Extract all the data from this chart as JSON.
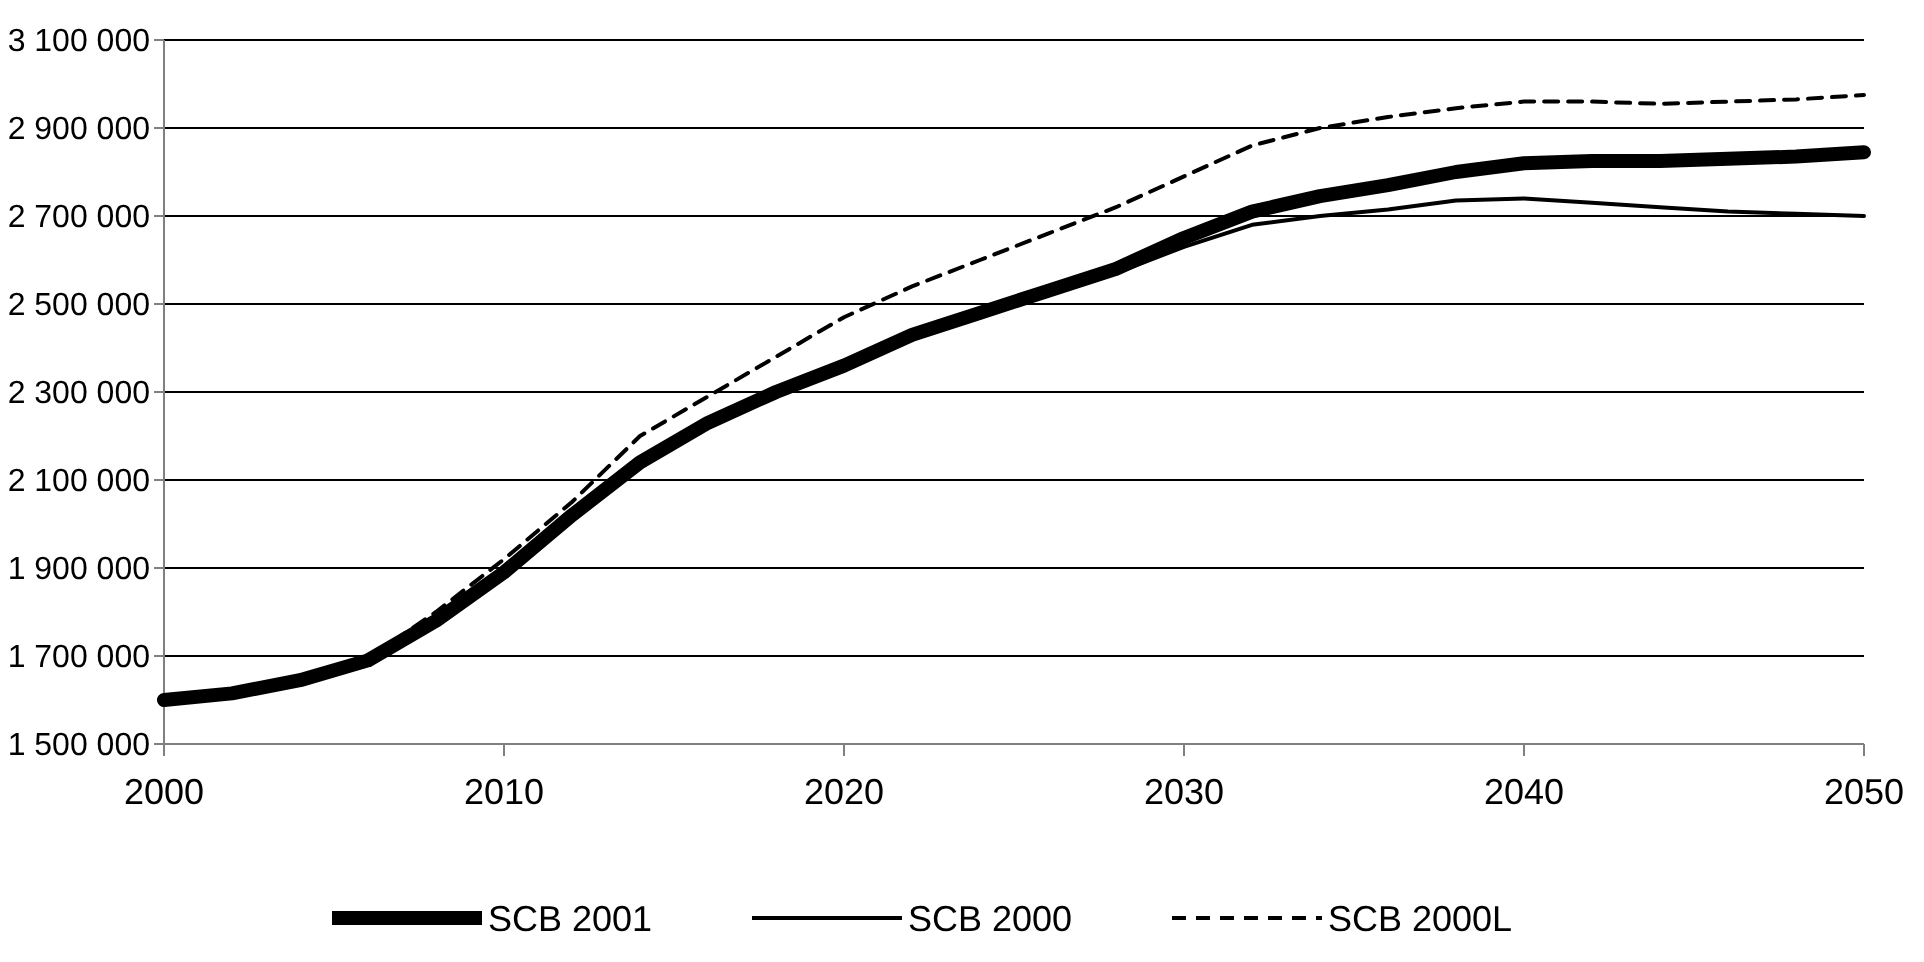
{
  "chart_data": {
    "type": "line",
    "x": [
      2000,
      2002,
      2004,
      2006,
      2008,
      2010,
      2012,
      2014,
      2016,
      2018,
      2020,
      2022,
      2024,
      2026,
      2028,
      2030,
      2032,
      2034,
      2036,
      2038,
      2040,
      2042,
      2044,
      2046,
      2048,
      2050
    ],
    "series": [
      {
        "name": "SCB 2001",
        "color": "#000000",
        "line_style": "solid",
        "values": [
          1600000,
          1615000,
          1645000,
          1690000,
          1780000,
          1890000,
          2020000,
          2140000,
          2230000,
          2300000,
          2360000,
          2430000,
          2480000,
          2530000,
          2580000,
          2650000,
          2710000,
          2745000,
          2770000,
          2800000,
          2820000,
          2825000,
          2825000,
          2830000,
          2835000,
          2845000
        ]
      },
      {
        "name": "SCB 2000",
        "color": "#000000",
        "line_style": "solid",
        "values": [
          1600000,
          1615000,
          1645000,
          1690000,
          1780000,
          1890000,
          2020000,
          2140000,
          2230000,
          2300000,
          2360000,
          2430000,
          2480000,
          2525000,
          2570000,
          2630000,
          2680000,
          2700000,
          2715000,
          2735000,
          2740000,
          2730000,
          2720000,
          2710000,
          2705000,
          2700000
        ]
      },
      {
        "name": "SCB 2000L",
        "color": "#000000",
        "line_style": "dashed",
        "values": [
          1600000,
          1615000,
          1645000,
          1695000,
          1800000,
          1920000,
          2050000,
          2200000,
          2290000,
          2380000,
          2470000,
          2540000,
          2600000,
          2660000,
          2720000,
          2790000,
          2860000,
          2900000,
          2925000,
          2945000,
          2960000,
          2960000,
          2955000,
          2960000,
          2965000,
          2975000
        ]
      }
    ],
    "xlim": [
      2000,
      2050
    ],
    "xticks": [
      2000,
      2010,
      2020,
      2030,
      2040,
      2050
    ],
    "ylim": [
      1500000,
      3100000
    ],
    "yticks": [
      {
        "value": 1500000,
        "label": "1 500 000"
      },
      {
        "value": 1700000,
        "label": "1 700 000"
      },
      {
        "value": 1900000,
        "label": "1 900 000"
      },
      {
        "value": 2100000,
        "label": "2 100 000"
      },
      {
        "value": 2300000,
        "label": "2 300 000"
      },
      {
        "value": 2500000,
        "label": "2 500 000"
      },
      {
        "value": 2700000,
        "label": "2 700 000"
      },
      {
        "value": 2900000,
        "label": "2 900 000"
      },
      {
        "value": 3100000,
        "label": "3 100 000"
      }
    ],
    "grid": "y",
    "legend": "bottom"
  }
}
